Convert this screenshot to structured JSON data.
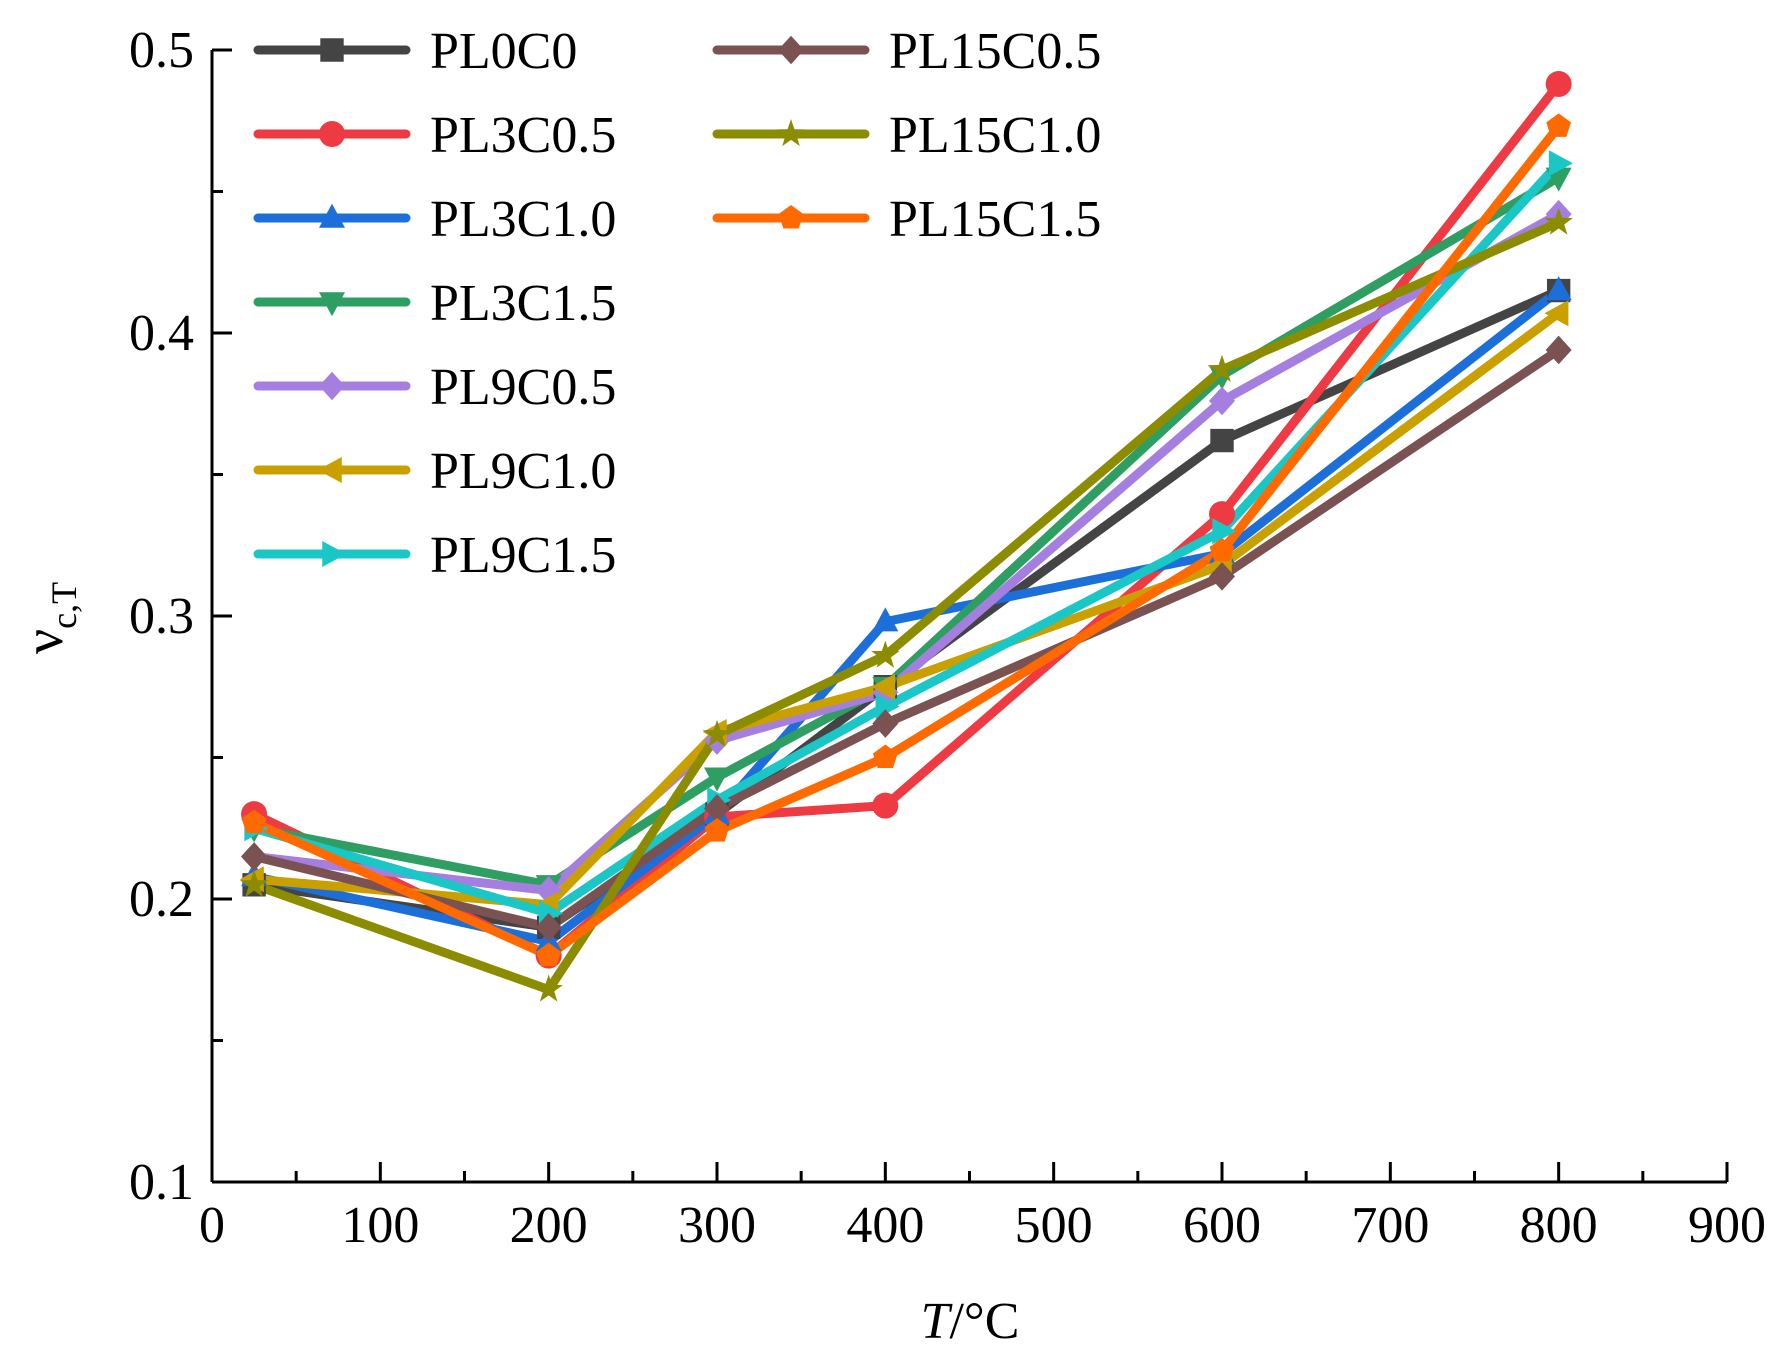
{
  "chart_data": {
    "type": "line",
    "title": "",
    "xlabel_italic": "T",
    "xlabel_rest": "/°C",
    "ylabel_main": "ν",
    "ylabel_sub": "c,T",
    "xlim": [
      0,
      900
    ],
    "ylim": [
      0.1,
      0.5
    ],
    "grid": false,
    "legend_position": "top-left",
    "x_ticks": [
      "0",
      "100",
      "200",
      "300",
      "400",
      "500",
      "600",
      "700",
      "800",
      "900"
    ],
    "y_ticks": [
      "0.1",
      "0.2",
      "0.3",
      "0.4",
      "0.5"
    ],
    "x": [
      25,
      200,
      300,
      400,
      600,
      800
    ],
    "series": [
      {
        "name": "PL0C0",
        "color": "#444444",
        "marker": "square",
        "values": [
          0.205,
          0.19,
          0.23,
          0.275,
          0.362,
          0.415
        ]
      },
      {
        "name": "PL3C0.5",
        "color": "#ee3a43",
        "marker": "circle",
        "values": [
          0.23,
          0.18,
          0.229,
          0.233,
          0.336,
          0.488
        ]
      },
      {
        "name": "PL3C1.0",
        "color": "#1c6fd8",
        "marker": "triangle-up",
        "values": [
          0.208,
          0.185,
          0.23,
          0.298,
          0.322,
          0.415
        ]
      },
      {
        "name": "PL3C1.5",
        "color": "#2e9e62",
        "marker": "triangle-down",
        "values": [
          0.225,
          0.205,
          0.243,
          0.275,
          0.385,
          0.455
        ]
      },
      {
        "name": "PL9C0.5",
        "color": "#a57fe0",
        "marker": "diamond",
        "values": [
          0.215,
          0.203,
          0.256,
          0.273,
          0.376,
          0.442
        ]
      },
      {
        "name": "PL9C1.0",
        "color": "#c9a000",
        "marker": "triangle-left",
        "values": [
          0.207,
          0.198,
          0.259,
          0.275,
          0.318,
          0.407
        ]
      },
      {
        "name": "PL9C1.5",
        "color": "#1bc6c6",
        "marker": "triangle-right",
        "values": [
          0.225,
          0.195,
          0.235,
          0.268,
          0.33,
          0.46
        ]
      },
      {
        "name": "PL15C0.5",
        "color": "#7b5252",
        "marker": "diamond",
        "values": [
          0.215,
          0.19,
          0.232,
          0.262,
          0.314,
          0.394
        ]
      },
      {
        "name": "PL15C1.0",
        "color": "#8c8c00",
        "marker": "star",
        "values": [
          0.205,
          0.168,
          0.258,
          0.286,
          0.387,
          0.439
        ]
      },
      {
        "name": "PL15C1.5",
        "color": "#ff6a00",
        "marker": "pentagon",
        "values": [
          0.227,
          0.18,
          0.224,
          0.25,
          0.323,
          0.473
        ]
      }
    ]
  }
}
